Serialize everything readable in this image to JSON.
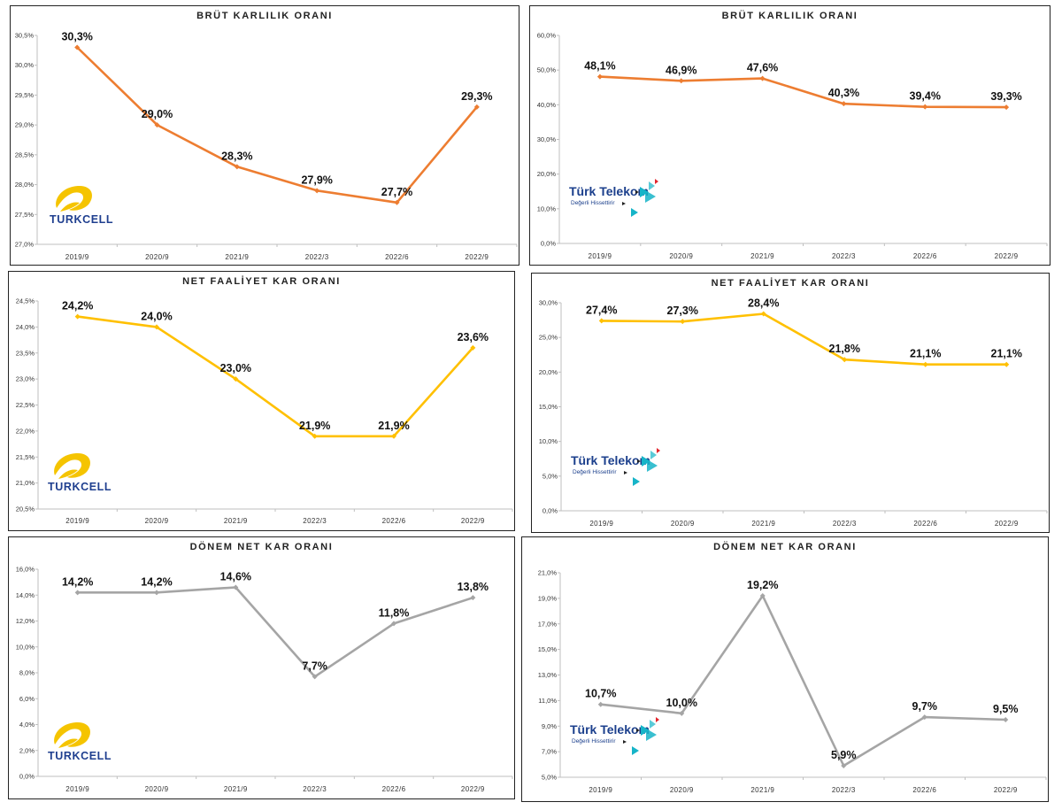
{
  "brands": {
    "turkcell": {
      "name": "TURKCELL",
      "yellow": "#f5c400",
      "blue": "#1f3f8f"
    },
    "turk_telekom": {
      "name": "Türk Telekom",
      "tagline": "Değerli Hissettirir",
      "blue": "#1b3f8c",
      "teal": "#16b4c8",
      "red": "#e3262e"
    }
  },
  "colors": {
    "orange": "#ed7d31",
    "yellow": "#ffc000",
    "gray": "#a5a5a5",
    "axis": "#bfbfbf"
  },
  "chart_data": [
    {
      "id": "turkcell-brut",
      "type": "line",
      "title": "BRÜT KARLILIK ORANI",
      "brand": "turkcell",
      "color": "orange",
      "categories": [
        "2019/9",
        "2020/9",
        "2021/9",
        "2022/3",
        "2022/6",
        "2022/9"
      ],
      "values": [
        30.3,
        29.0,
        28.3,
        27.9,
        27.7,
        29.3
      ],
      "labels": [
        "30,3%",
        "29,0%",
        "28,3%",
        "27,9%",
        "27,7%",
        "29,3%"
      ],
      "ylim": [
        27.0,
        30.5
      ],
      "yticks": [
        "27,0%",
        "27,5%",
        "28,0%",
        "28,5%",
        "29,0%",
        "29,5%",
        "30,0%",
        "30,5%"
      ]
    },
    {
      "id": "tt-brut",
      "type": "line",
      "title": "BRÜT KARLILIK ORANI",
      "brand": "turk_telekom",
      "color": "orange",
      "categories": [
        "2019/9",
        "2020/9",
        "2021/9",
        "2022/3",
        "2022/6",
        "2022/9"
      ],
      "values": [
        48.1,
        46.9,
        47.6,
        40.3,
        39.4,
        39.3
      ],
      "labels": [
        "48,1%",
        "46,9%",
        "47,6%",
        "40,3%",
        "39,4%",
        "39,3%"
      ],
      "ylim": [
        0,
        60
      ],
      "yticks": [
        "0,0%",
        "10,0%",
        "20,0%",
        "30,0%",
        "40,0%",
        "50,0%",
        "60,0%"
      ]
    },
    {
      "id": "turkcell-net-faaliyet",
      "type": "line",
      "title": "NET FAALİYET KAR ORANI",
      "brand": "turkcell",
      "color": "yellow",
      "categories": [
        "2019/9",
        "2020/9",
        "2021/9",
        "2022/3",
        "2022/6",
        "2022/9"
      ],
      "values": [
        24.2,
        24.0,
        23.0,
        21.9,
        21.9,
        23.6
      ],
      "labels": [
        "24,2%",
        "24,0%",
        "23,0%",
        "21,9%",
        "21,9%",
        "23,6%"
      ],
      "ylim": [
        20.5,
        24.5
      ],
      "yticks": [
        "20,5%",
        "21,0%",
        "21,5%",
        "22,0%",
        "22,5%",
        "23,0%",
        "23,5%",
        "24,0%",
        "24,5%"
      ]
    },
    {
      "id": "tt-net-faaliyet",
      "type": "line",
      "title": "NET FAALİYET KAR ORANI",
      "brand": "turk_telekom",
      "color": "yellow",
      "categories": [
        "2019/9",
        "2020/9",
        "2021/9",
        "2022/3",
        "2022/6",
        "2022/9"
      ],
      "values": [
        27.4,
        27.3,
        28.4,
        21.8,
        21.1,
        21.1
      ],
      "labels": [
        "27,4%",
        "27,3%",
        "28,4%",
        "21,8%",
        "21,1%",
        "21,1%"
      ],
      "ylim": [
        0,
        30
      ],
      "yticks": [
        "0,0%",
        "5,0%",
        "10,0%",
        "15,0%",
        "20,0%",
        "25,0%",
        "30,0%"
      ]
    },
    {
      "id": "turkcell-donem-net",
      "type": "line",
      "title": "DÖNEM NET KAR ORANI",
      "brand": "turkcell",
      "color": "gray",
      "categories": [
        "2019/9",
        "2020/9",
        "2021/9",
        "2022/3",
        "2022/6",
        "2022/9"
      ],
      "values": [
        14.2,
        14.2,
        14.6,
        7.7,
        11.8,
        13.8
      ],
      "labels": [
        "14,2%",
        "14,2%",
        "14,6%",
        "7,7%",
        "11,8%",
        "13,8%"
      ],
      "ylim": [
        0,
        16
      ],
      "yticks": [
        "0,0%",
        "2,0%",
        "4,0%",
        "6,0%",
        "8,0%",
        "10,0%",
        "12,0%",
        "14,0%",
        "16,0%"
      ]
    },
    {
      "id": "tt-donem-net",
      "type": "line",
      "title": "DÖNEM NET KAR ORANI",
      "brand": "turk_telekom",
      "color": "gray",
      "categories": [
        "2019/9",
        "2020/9",
        "2021/9",
        "2022/3",
        "2022/6",
        "2022/9"
      ],
      "values": [
        10.7,
        10.0,
        19.2,
        5.9,
        9.7,
        9.5
      ],
      "labels": [
        "10,7%",
        "10,0%",
        "19,2%",
        "5,9%",
        "9,7%",
        "9,5%"
      ],
      "ylim": [
        5,
        21
      ],
      "yticks": [
        "5,0%",
        "7,0%",
        "9,0%",
        "11,0%",
        "13,0%",
        "15,0%",
        "17,0%",
        "19,0%",
        "21,0%"
      ]
    }
  ]
}
